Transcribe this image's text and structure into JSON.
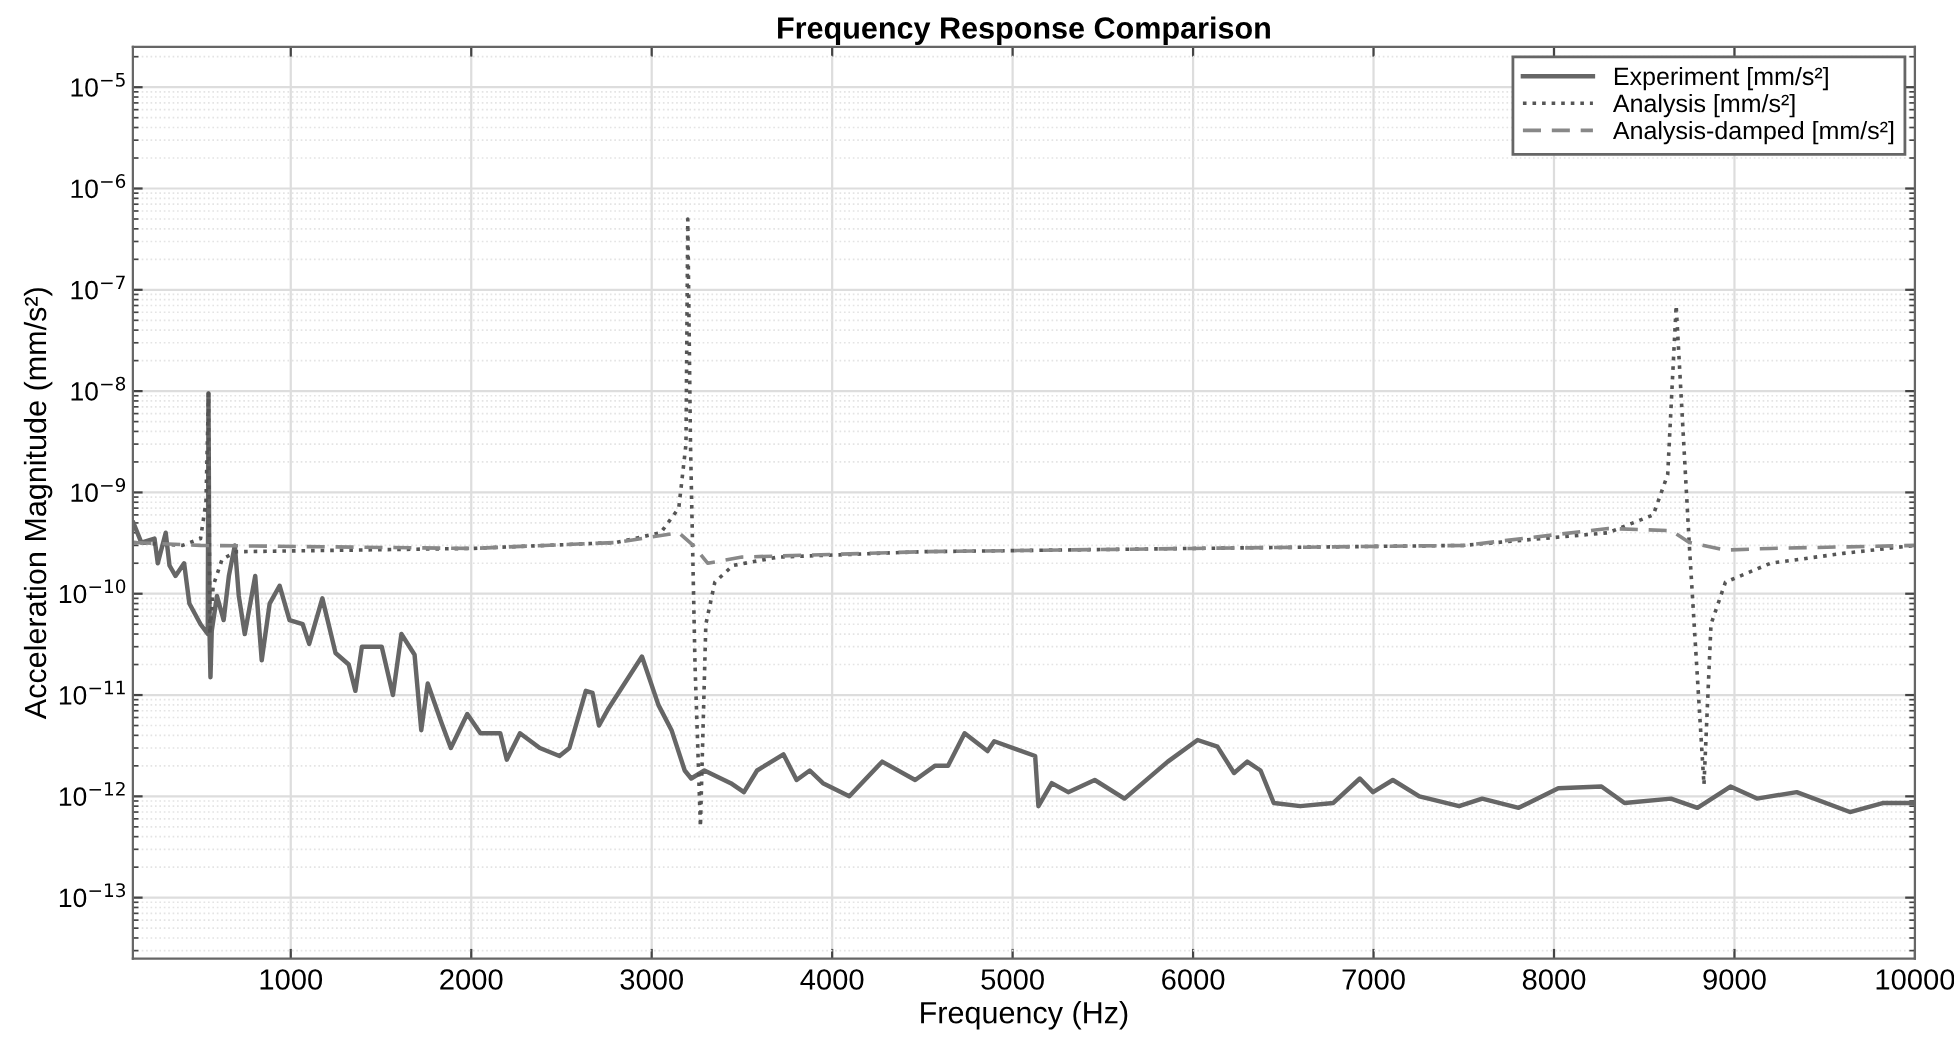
{
  "chart_data": {
    "type": "line",
    "title": "Frequency Response Comparison",
    "xlabel": "Frequency (Hz)",
    "ylabel": "Acceleration Magnitude (mm/s²)",
    "log": "y",
    "grid": true,
    "legend": "top right",
    "xlim": [
      125,
      10000
    ],
    "xticks": [
      1000,
      2000,
      3000,
      4000,
      5000,
      6000,
      7000,
      8000,
      9000,
      10000
    ],
    "ylim": [
      2.5e-14,
      2.5e-05
    ],
    "yticks": [
      {
        "value": 1e-13,
        "label": "10$^{−13}$"
      },
      {
        "value": 1e-12,
        "label": "10$^{−12}$"
      },
      {
        "value": 1e-11,
        "label": "10$^{−11}$"
      },
      {
        "value": 1e-10,
        "label": "10$^{−10}$"
      },
      {
        "value": 1e-09,
        "label": "10$^{−9}$"
      },
      {
        "value": 1e-08,
        "label": "10$^{−8}$"
      },
      {
        "value": 1e-07,
        "label": "10$^{−7}$"
      },
      {
        "value": 1e-06,
        "label": "10$^{−6}$"
      },
      {
        "value": 1e-05,
        "label": "10$^{−5}$"
      }
    ],
    "series": [
      {
        "name": "Experiment [mm/s²]",
        "color": "#666666",
        "line_style": "solid",
        "x": [
          128,
          172,
          245,
          263,
          307,
          328,
          361,
          409,
          438,
          500,
          540,
          544,
          550,
          555,
          562,
          591,
          628,
          657,
          690,
          712,
          745,
          803,
          839,
          883,
          938,
          993,
          1066,
          1102,
          1175,
          1248,
          1321,
          1358,
          1394,
          1504,
          1566,
          1613,
          1686,
          1723,
          1759,
          1832,
          1887,
          1978,
          2051,
          2161,
          2197,
          2270,
          2380,
          2489,
          2544,
          2635,
          2672,
          2708,
          2763,
          2946,
          3037,
          3110,
          3183,
          3219,
          3292,
          3438,
          3511,
          3584,
          3730,
          3803,
          3876,
          3949,
          4095,
          4277,
          4460,
          4569,
          4642,
          4734,
          4861,
          4898,
          5125,
          5143,
          5217,
          5308,
          5455,
          5620,
          5860,
          6025,
          6135,
          6227,
          6300,
          6374,
          6447,
          6594,
          6777,
          6924,
          6997,
          7107,
          7254,
          7474,
          7602,
          7804,
          8024,
          8263,
          8391,
          8648,
          8795,
          8978,
          9125,
          9345,
          9640,
          9826,
          10000
        ],
        "values": [
          5e-10,
          3.2e-10,
          3.5e-10,
          2e-10,
          4e-10,
          1.9e-10,
          1.5e-10,
          2e-10,
          8e-11,
          5e-11,
          4e-11,
          9.5e-09,
          4e-11,
          1.5e-11,
          4.3e-11,
          9.5e-11,
          5.5e-11,
          1.5e-10,
          3e-10,
          9.5e-11,
          4e-11,
          1.5e-10,
          2.2e-11,
          8e-11,
          1.2e-10,
          5.5e-11,
          5e-11,
          3.2e-11,
          9e-11,
          2.6e-11,
          2e-11,
          1.1e-11,
          3e-11,
          3e-11,
          1e-11,
          4e-11,
          2.5e-11,
          4.5e-12,
          1.3e-11,
          5.5e-12,
          3e-12,
          6.5e-12,
          4.2e-12,
          4.2e-12,
          2.3e-12,
          4.2e-12,
          3e-12,
          2.5e-12,
          3e-12,
          1.1e-11,
          1.05e-11,
          5e-12,
          7.5e-12,
          2.4e-11,
          8e-12,
          4.5e-12,
          1.8e-12,
          1.5e-12,
          1.8e-12,
          1.35e-12,
          1.1e-12,
          1.8e-12,
          2.6e-12,
          1.45e-12,
          1.8e-12,
          1.35e-12,
          1e-12,
          2.2e-12,
          1.45e-12,
          2e-12,
          2e-12,
          4.2e-12,
          2.8e-12,
          3.5e-12,
          2.5e-12,
          8e-13,
          1.35e-12,
          1.1e-12,
          1.45e-12,
          9.5e-13,
          2.2e-12,
          3.6e-12,
          3.1e-12,
          1.7e-12,
          2.2e-12,
          1.8e-12,
          8.6e-13,
          8e-13,
          8.6e-13,
          1.5e-12,
          1.1e-12,
          1.45e-12,
          1e-12,
          8e-13,
          9.5e-13,
          7.7e-13,
          1.2e-12,
          1.25e-12,
          8.6e-13,
          9.5e-13,
          7.7e-13,
          1.25e-12,
          9.5e-13,
          1.1e-12,
          7e-13,
          8.6e-13,
          8.6e-13
        ]
      },
      {
        "name": "Analysis [mm/s²]",
        "color": "#555555",
        "line_style": "dotted",
        "x": [
          128,
          400,
          500,
          530,
          544,
          552,
          570,
          620,
          700,
          2000,
          2800,
          3050,
          3150,
          3190,
          3200,
          3215,
          3240,
          3270,
          3300,
          3350,
          3450,
          3700,
          4500,
          6000,
          7500,
          8300,
          8550,
          8630,
          8677,
          8750,
          8831,
          8870,
          8950,
          9200,
          9600,
          10000
        ],
        "values": [
          3.2e-10,
          3e-10,
          3.5e-10,
          8e-10,
          9.5e-09,
          4e-11,
          1.2e-10,
          2.2e-10,
          2.6e-10,
          2.8e-10,
          3.2e-10,
          4e-10,
          7e-10,
          3e-09,
          5e-07,
          3e-09,
          2e-11,
          5e-13,
          5e-11,
          1.3e-10,
          1.9e-10,
          2.3e-10,
          2.6e-10,
          2.8e-10,
          3e-10,
          4e-10,
          6e-10,
          1.5e-09,
          7e-08,
          3e-10,
          1.3e-12,
          5e-11,
          1.3e-10,
          2e-10,
          2.5e-10,
          3e-10
        ]
      },
      {
        "name": "Analysis-damped [mm/s²]",
        "color": "#888888",
        "line_style": "dashed",
        "x": [
          128,
          500,
          2000,
          2800,
          3150,
          3230,
          3310,
          3500,
          4500,
          6000,
          7500,
          8300,
          8650,
          8750,
          8950,
          9200,
          10000
        ],
        "values": [
          3.2e-10,
          3e-10,
          2.8e-10,
          3.2e-10,
          4e-10,
          3e-10,
          2e-10,
          2.3e-10,
          2.6e-10,
          2.8e-10,
          3e-10,
          4.4e-10,
          4.2e-10,
          3.2e-10,
          2.7e-10,
          2.8e-10,
          3e-10
        ]
      }
    ]
  }
}
